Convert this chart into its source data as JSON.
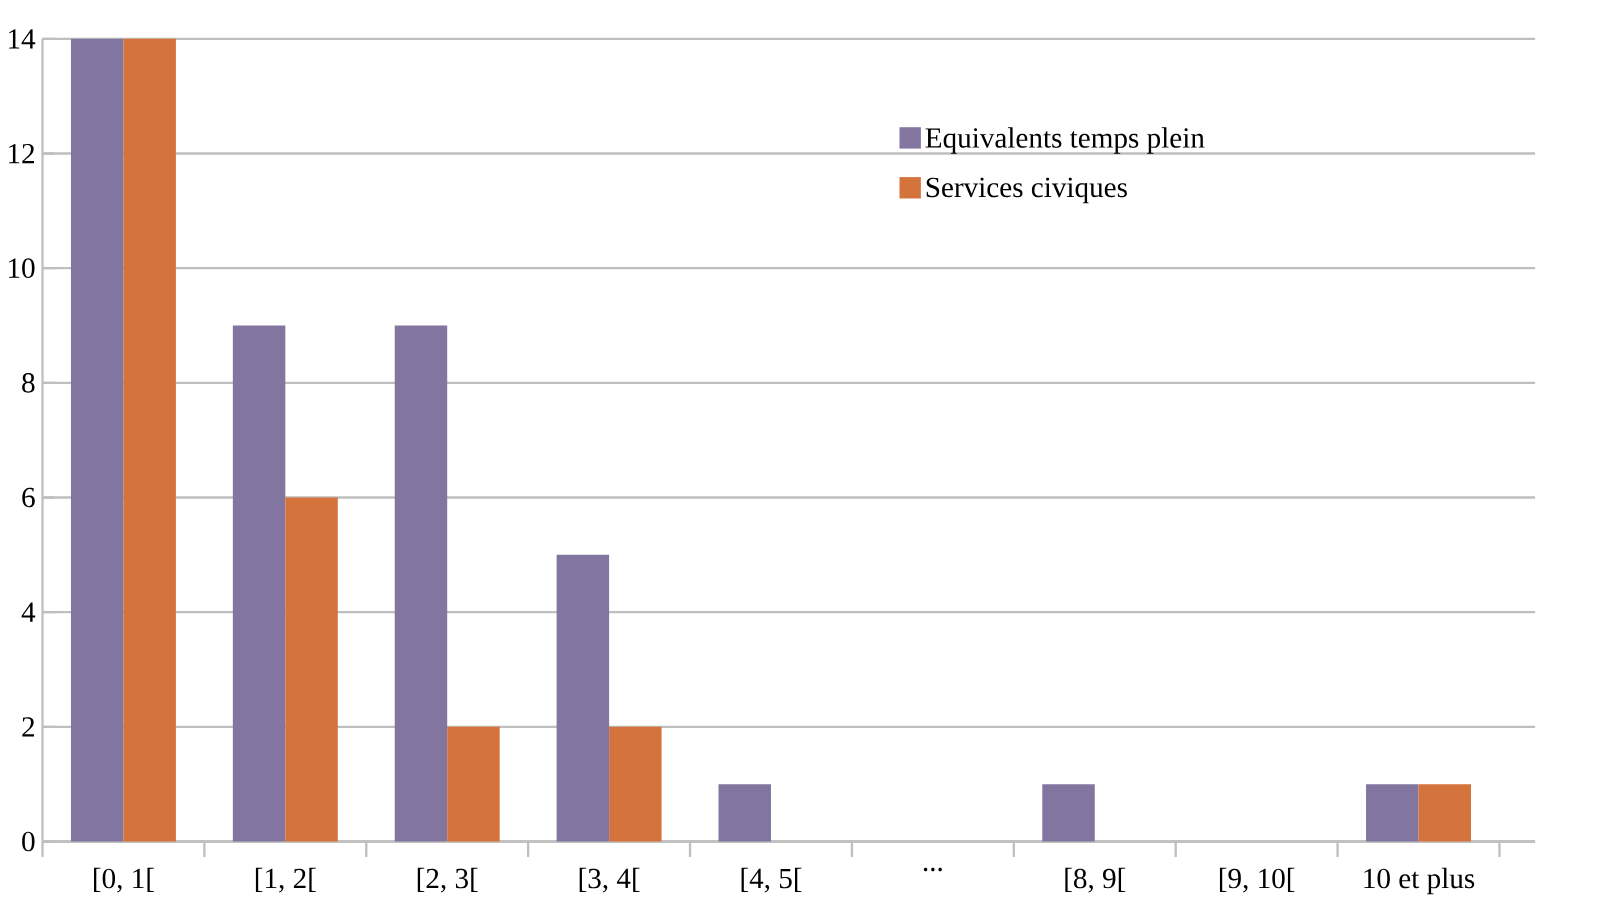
{
  "chart_data": {
    "type": "bar",
    "categories": [
      "[0, 1[",
      "[1, 2[",
      "[2, 3[",
      "[3, 4[",
      "[4, 5[",
      "...",
      "[8, 9[",
      "[9, 10[",
      "10 et plus"
    ],
    "series": [
      {
        "name": "Equivalents temps plein",
        "color": "#8276a0",
        "values": [
          14,
          9,
          9,
          5,
          1,
          0,
          1,
          0,
          1
        ]
      },
      {
        "name": "Services civiques",
        "color": "#d5733d",
        "values": [
          14,
          6,
          2,
          2,
          0,
          0,
          0,
          0,
          1
        ]
      }
    ],
    "ylim": [
      0,
      14
    ],
    "yticks": [
      0,
      2,
      4,
      6,
      8,
      10,
      12,
      14
    ],
    "grid": "y",
    "legend": "top right"
  }
}
